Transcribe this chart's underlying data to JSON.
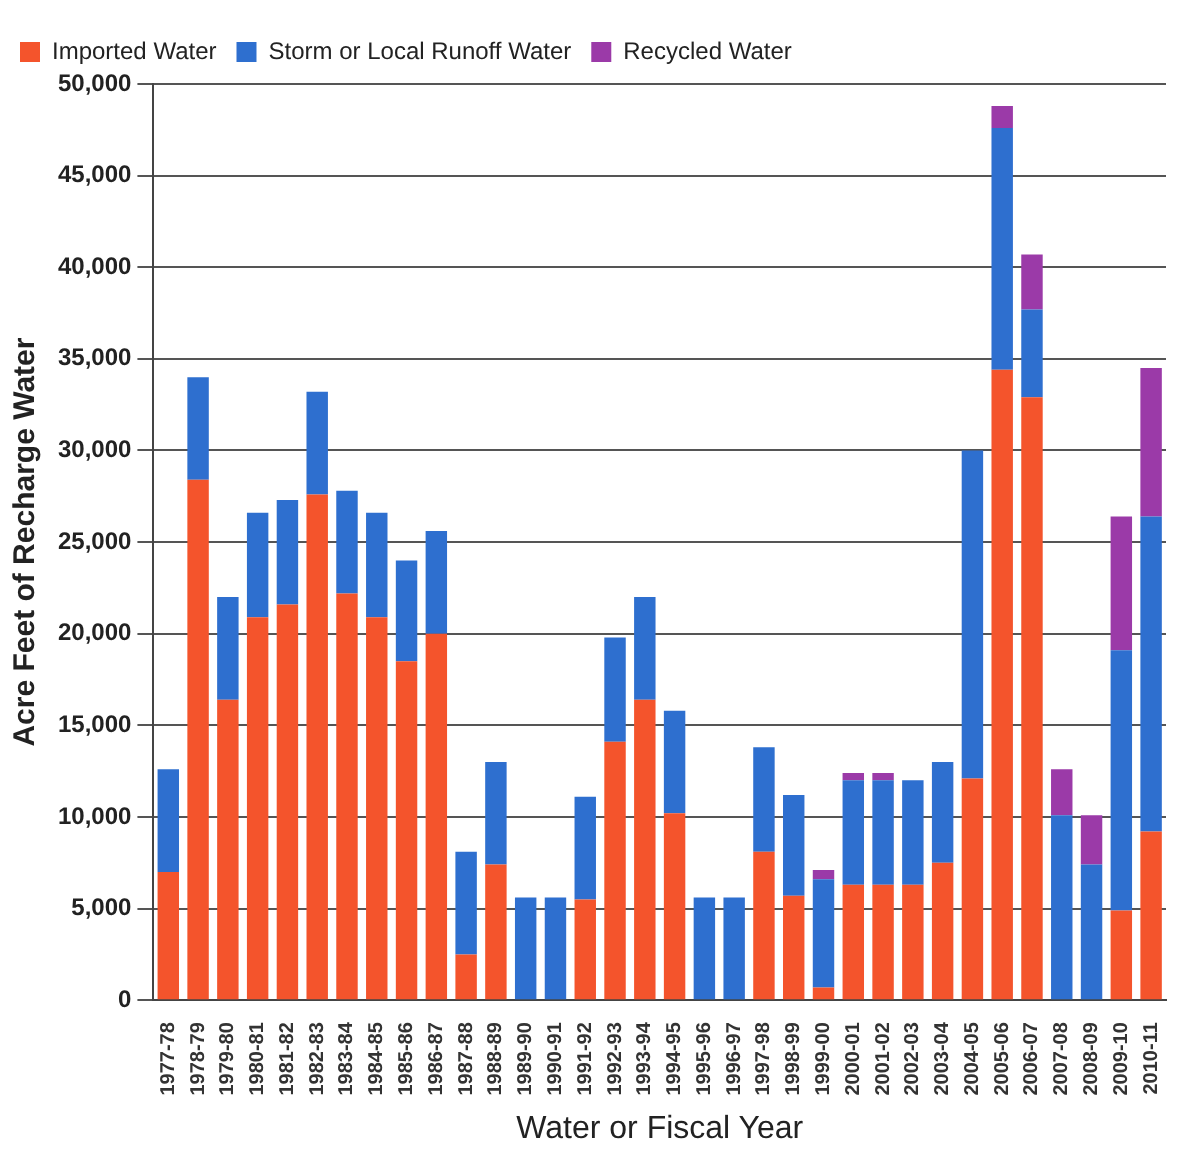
{
  "chart_data": {
    "type": "bar",
    "stacked": true,
    "xlabel": "Water or Fiscal Year",
    "ylabel": "Acre Feet of Recharge Water",
    "categories": [
      "1977-78",
      "1978-79",
      "1979-80",
      "1980-81",
      "1981-82",
      "1982-83",
      "1983-84",
      "1984-85",
      "1985-86",
      "1986-87",
      "1987-88",
      "1988-89",
      "1989-90",
      "1990-91",
      "1991-92",
      "1992-93",
      "1993-94",
      "1994-95",
      "1995-96",
      "1996-97",
      "1997-98",
      "1998-99",
      "1999-00",
      "2000-01",
      "2001-02",
      "2002-03",
      "2003-04",
      "2004-05",
      "2005-06",
      "2006-07",
      "2007-08",
      "2008-09",
      "2009-10",
      "2010-11"
    ],
    "series": [
      {
        "name": "Imported Water",
        "color": "#f4542c",
        "values": [
          7000,
          28400,
          16400,
          20900,
          21600,
          27600,
          22200,
          20900,
          18500,
          20000,
          2500,
          7400,
          0,
          0,
          5500,
          14100,
          16400,
          10200,
          0,
          0,
          8100,
          5700,
          700,
          6300,
          6300,
          6300,
          7500,
          12100,
          34400,
          32900,
          0,
          0,
          4900,
          9200
        ]
      },
      {
        "name": "Storm or Local Runoff Water",
        "color": "#2e6fcf",
        "values": [
          5600,
          5600,
          5600,
          5700,
          5700,
          5600,
          5600,
          5700,
          5500,
          5600,
          5600,
          5600,
          5600,
          5600,
          5600,
          5700,
          5600,
          5600,
          5600,
          5600,
          5700,
          5500,
          5900,
          5700,
          5700,
          5700,
          5500,
          17900,
          13200,
          4800,
          10100,
          7400,
          14200,
          17200
        ]
      },
      {
        "name": "Recycled Water",
        "color": "#9b3aa8",
        "values": [
          0,
          0,
          0,
          0,
          0,
          0,
          0,
          0,
          0,
          0,
          0,
          0,
          0,
          0,
          0,
          0,
          0,
          0,
          0,
          0,
          0,
          0,
          500,
          400,
          400,
          0,
          0,
          0,
          1200,
          3000,
          2500,
          2700,
          7300,
          8100
        ]
      }
    ],
    "ylim": [
      0,
      50000
    ],
    "yticks": [
      0,
      {
        "value": 5000,
        "label": "5,000"
      },
      {
        "value": 10000,
        "label": "10,000"
      },
      {
        "value": 15000,
        "label": "15,000"
      },
      {
        "value": 20000,
        "label": "20,000"
      },
      {
        "value": 25000,
        "label": "25,000"
      },
      {
        "value": 30000,
        "label": "30,000"
      },
      {
        "value": 35000,
        "label": "35,000"
      },
      {
        "value": 40000,
        "label": "40,000"
      },
      {
        "value": 45000,
        "label": "45,000"
      },
      {
        "value": 50000,
        "label": "50,000"
      }
    ],
    "grid": "y",
    "legend": "top left"
  }
}
